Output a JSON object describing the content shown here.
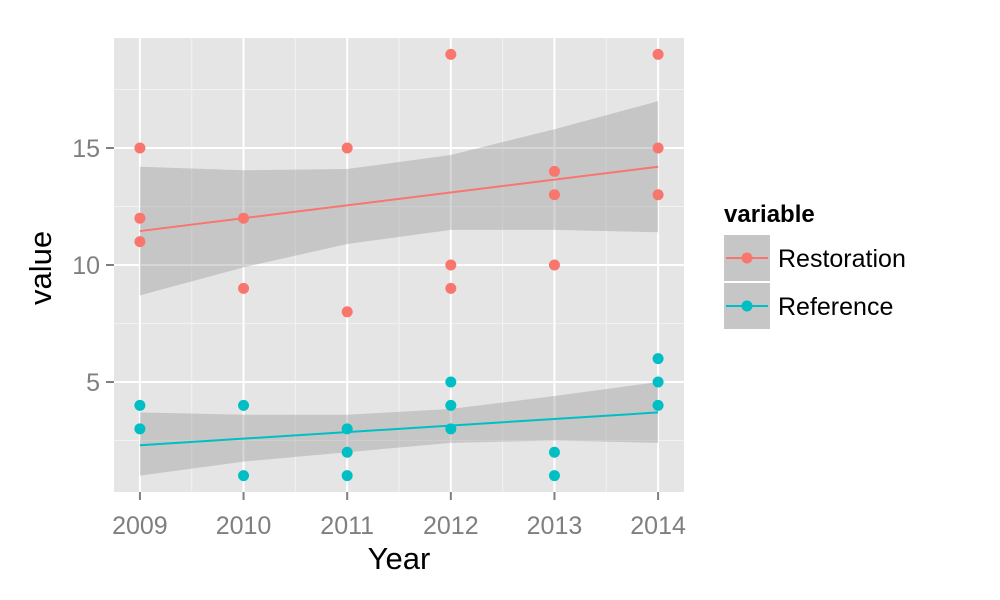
{
  "chart_data": {
    "type": "scatter",
    "title": "",
    "xlabel": "Year",
    "ylabel": "value",
    "xlim": [
      2008.75,
      2014.25
    ],
    "ylim": [
      0.3,
      19.7
    ],
    "x_ticks": [
      2009,
      2010,
      2011,
      2012,
      2013,
      2014
    ],
    "y_ticks": [
      5,
      10,
      15
    ],
    "grid": true,
    "legend": {
      "title": "variable",
      "position": "right"
    },
    "series": [
      {
        "name": "Restoration",
        "color": "#F8766D",
        "points": [
          [
            2009,
            15
          ],
          [
            2009,
            12
          ],
          [
            2009,
            11
          ],
          [
            2010,
            12
          ],
          [
            2010,
            9
          ],
          [
            2011,
            15
          ],
          [
            2011,
            8
          ],
          [
            2012,
            19
          ],
          [
            2012,
            10
          ],
          [
            2012,
            9
          ],
          [
            2013,
            14
          ],
          [
            2013,
            13
          ],
          [
            2013,
            10
          ],
          [
            2014,
            19
          ],
          [
            2014,
            15
          ],
          [
            2014,
            13
          ]
        ],
        "trend": {
          "start": [
            2009,
            11.45
          ],
          "end": [
            2014,
            14.2
          ]
        },
        "band": [
          {
            "x": 2009,
            "lo": 8.7,
            "hi": 14.2
          },
          {
            "x": 2010,
            "lo": 9.9,
            "hi": 14.05
          },
          {
            "x": 2011,
            "lo": 10.9,
            "hi": 14.1
          },
          {
            "x": 2012,
            "lo": 11.5,
            "hi": 14.7
          },
          {
            "x": 2013,
            "lo": 11.5,
            "hi": 15.8
          },
          {
            "x": 2014,
            "lo": 11.4,
            "hi": 17.0
          }
        ]
      },
      {
        "name": "Reference",
        "color": "#00BFC4",
        "points": [
          [
            2009,
            4
          ],
          [
            2009,
            3
          ],
          [
            2010,
            4
          ],
          [
            2010,
            1
          ],
          [
            2011,
            3
          ],
          [
            2011,
            2
          ],
          [
            2011,
            1
          ],
          [
            2012,
            5
          ],
          [
            2012,
            4
          ],
          [
            2012,
            3
          ],
          [
            2013,
            2
          ],
          [
            2013,
            1
          ],
          [
            2014,
            6
          ],
          [
            2014,
            5
          ],
          [
            2014,
            4
          ]
        ],
        "trend": {
          "start": [
            2009,
            2.3
          ],
          "end": [
            2014,
            3.7
          ]
        },
        "band": [
          {
            "x": 2009,
            "lo": 1.0,
            "hi": 3.7
          },
          {
            "x": 2010,
            "lo": 1.6,
            "hi": 3.6
          },
          {
            "x": 2011,
            "lo": 2.0,
            "hi": 3.6
          },
          {
            "x": 2012,
            "lo": 2.4,
            "hi": 3.85
          },
          {
            "x": 2013,
            "lo": 2.5,
            "hi": 4.4
          },
          {
            "x": 2014,
            "lo": 2.4,
            "hi": 5.0
          }
        ]
      }
    ]
  }
}
